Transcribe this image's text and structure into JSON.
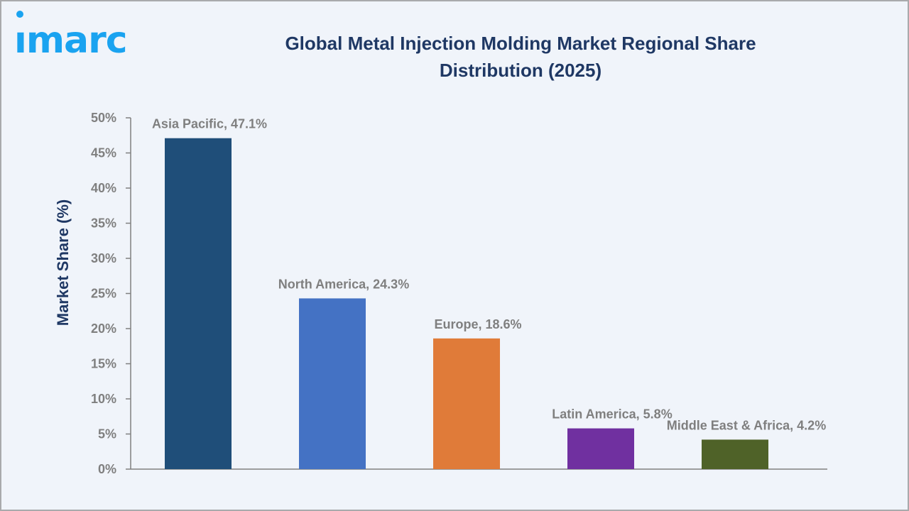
{
  "logo": {
    "text": "imarc",
    "color": "#1aa3f0"
  },
  "chart_data": {
    "type": "bar",
    "title": "Global Metal Injection Molding Market Regional Share Distribution (2025)",
    "title_lines": [
      "Global Metal Injection Molding Market Regional Share",
      "Distribution (2025)"
    ],
    "xlabel": "",
    "ylabel": "Market Share (%)",
    "ylim": [
      0,
      50
    ],
    "yticks": [
      0,
      5,
      10,
      15,
      20,
      25,
      30,
      35,
      40,
      45,
      50
    ],
    "ytick_labels": [
      "0%",
      "5%",
      "10%",
      "15%",
      "20%",
      "25%",
      "30%",
      "35%",
      "40%",
      "45%",
      "50%"
    ],
    "grid": false,
    "categories": [
      "Asia Pacific",
      "North America",
      "Europe",
      "Latin America",
      "Middle East & Africa"
    ],
    "values": [
      47.1,
      24.3,
      18.6,
      5.8,
      4.2
    ],
    "data_labels": [
      "Asia Pacific, 47.1%",
      "North America, 24.3%",
      "Europe, 18.6%",
      "Latin America, 5.8%",
      "Middle East & Africa, 4.2%"
    ],
    "colors": [
      "#1f4e79",
      "#4472c4",
      "#e07b39",
      "#7030a0",
      "#4f6228"
    ]
  }
}
